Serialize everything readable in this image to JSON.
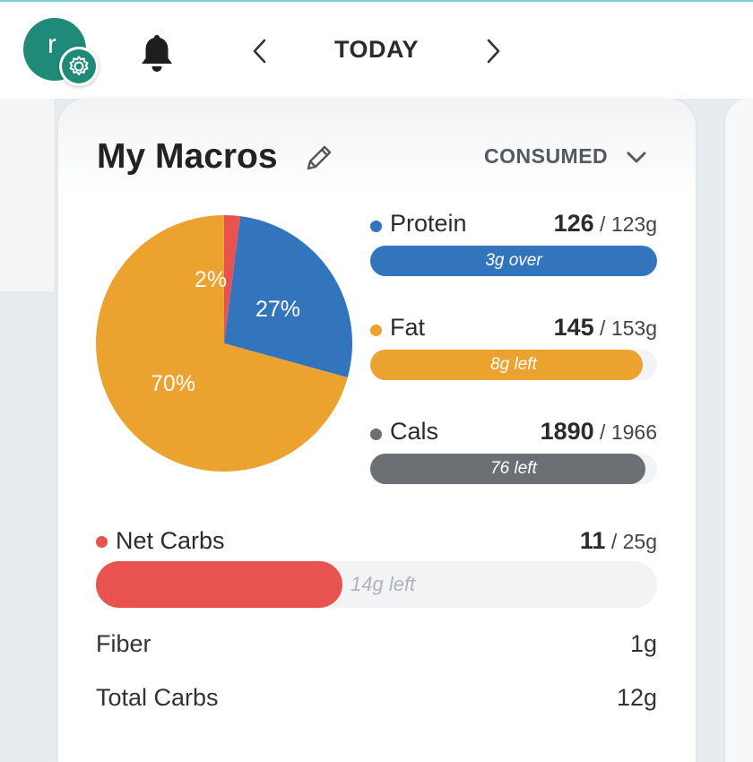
{
  "header": {
    "avatar_initial": "r",
    "title": "TODAY"
  },
  "card": {
    "title": "My Macros",
    "mode_selector": "CONSUMED"
  },
  "pie_labels": {
    "fat": "70%",
    "protein": "27%",
    "carbs": "2%"
  },
  "chart_data": {
    "type": "pie",
    "slices": [
      {
        "label": "Net Carbs",
        "value": 2,
        "color": "#e8534f"
      },
      {
        "label": "Protein",
        "value": 27,
        "color": "#3375bd"
      },
      {
        "label": "Fat",
        "value": 70,
        "color": "#eba22f"
      }
    ]
  },
  "macros": [
    {
      "name": "Protein",
      "value": "126",
      "target": " / 123g",
      "bar_label": "3g over",
      "fill_fraction": 1.0,
      "color": "#3375bd"
    },
    {
      "name": "Fat",
      "value": "145",
      "target": " / 153g",
      "bar_label": "8g left",
      "fill_fraction": 0.95,
      "color": "#eba22f"
    },
    {
      "name": "Cals",
      "value": "1890",
      "target": " / 1966",
      "bar_label": "76 left",
      "fill_fraction": 0.96,
      "color": "#6c6f74"
    }
  ],
  "net_carbs": {
    "name": "Net Carbs",
    "value": "11",
    "target": " / 25g",
    "bar_label": "14g left",
    "fill_fraction": 0.44,
    "color": "#e8534f"
  },
  "fiber": {
    "label": "Fiber",
    "value": "1g"
  },
  "total_carbs": {
    "label": "Total Carbs",
    "value": "12g"
  }
}
